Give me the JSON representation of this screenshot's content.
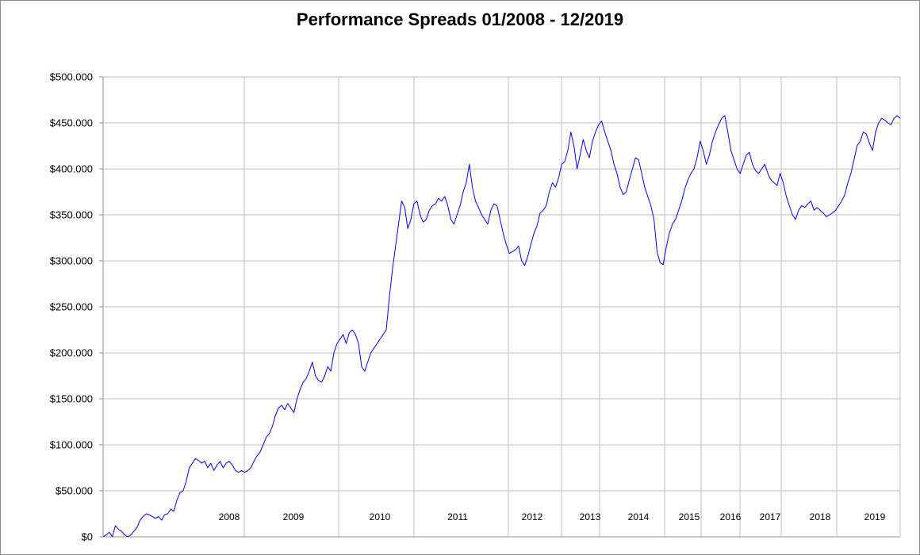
{
  "chart_data": {
    "type": "line",
    "title": "Performance Spreads 01/2008 - 12/2019",
    "xlabel": "",
    "ylabel": "",
    "ylim": [
      0,
      500000
    ],
    "yticks": [
      {
        "value": 0,
        "label": "$0"
      },
      {
        "value": 50000,
        "label": "$50.000"
      },
      {
        "value": 100000,
        "label": "$100.000"
      },
      {
        "value": 150000,
        "label": "$150.000"
      },
      {
        "value": 200000,
        "label": "$200.000"
      },
      {
        "value": 250000,
        "label": "$250.000"
      },
      {
        "value": 300000,
        "label": "$300.000"
      },
      {
        "value": 350000,
        "label": "$350.000"
      },
      {
        "value": 400000,
        "label": "$400.000"
      },
      {
        "value": 450000,
        "label": "$450.000"
      },
      {
        "value": 500000,
        "label": "$500.000"
      }
    ],
    "year_labels": [
      "2008",
      "2009",
      "2010",
      "2011",
      "2012",
      "2013",
      "2014",
      "2015",
      "2016",
      "2017",
      "2018",
      "2019"
    ],
    "grid": true,
    "legend": "none",
    "colors": {
      "line": "#0000ff",
      "grid": "#bfbfbf",
      "axis": "#8c8c8c"
    },
    "series": [
      {
        "color": "#0000ff",
        "values": [
          0,
          2000,
          5000,
          0,
          12000,
          8000,
          6000,
          2000,
          0,
          2000,
          6000,
          10000,
          18000,
          22000,
          25000,
          24000,
          22000,
          20000,
          22000,
          18000,
          24000,
          25000,
          30000,
          28000,
          40000,
          48000,
          50000,
          60000,
          75000,
          80000,
          85000,
          83000,
          80000,
          82000,
          75000,
          80000,
          72000,
          78000,
          82000,
          75000,
          80000,
          82000,
          78000,
          72000,
          70000,
          72000,
          70000,
          72000,
          75000,
          82000,
          88000,
          92000,
          100000,
          108000,
          112000,
          120000,
          132000,
          140000,
          143000,
          138000,
          145000,
          140000,
          135000,
          150000,
          160000,
          168000,
          172000,
          180000,
          190000,
          175000,
          170000,
          168000,
          175000,
          185000,
          180000,
          200000,
          210000,
          215000,
          220000,
          210000,
          222000,
          225000,
          220000,
          210000,
          185000,
          180000,
          190000,
          200000,
          205000,
          210000,
          215000,
          220000,
          225000,
          260000,
          290000,
          315000,
          340000,
          365000,
          358000,
          335000,
          345000,
          362000,
          365000,
          350000,
          342000,
          345000,
          355000,
          360000,
          362000,
          368000,
          365000,
          370000,
          360000,
          345000,
          340000,
          350000,
          360000,
          375000,
          385000,
          405000,
          380000,
          365000,
          358000,
          350000,
          345000,
          340000,
          355000,
          362000,
          360000,
          345000,
          330000,
          318000,
          308000,
          310000,
          312000,
          316000,
          300000,
          295000,
          305000,
          318000,
          330000,
          338000,
          352000,
          355000,
          360000,
          375000,
          385000,
          380000,
          390000,
          405000,
          408000,
          420000,
          440000,
          425000,
          400000,
          415000,
          432000,
          420000,
          412000,
          430000,
          440000,
          448000,
          452000,
          440000,
          430000,
          420000,
          405000,
          395000,
          380000,
          372000,
          375000,
          388000,
          400000,
          412000,
          410000,
          395000,
          380000,
          370000,
          360000,
          345000,
          310000,
          298000,
          296000,
          315000,
          330000,
          340000,
          345000,
          355000,
          365000,
          378000,
          388000,
          395000,
          400000,
          412000,
          430000,
          420000,
          405000,
          415000,
          430000,
          440000,
          448000,
          455000,
          458000,
          440000,
          420000,
          410000,
          400000,
          395000,
          405000,
          415000,
          418000,
          405000,
          398000,
          395000,
          400000,
          405000,
          395000,
          388000,
          385000,
          382000,
          395000,
          385000,
          370000,
          360000,
          350000,
          345000,
          355000,
          360000,
          358000,
          362000,
          365000,
          355000,
          358000,
          355000,
          352000,
          348000,
          350000,
          352000,
          355000,
          360000,
          365000,
          372000,
          385000,
          395000,
          410000,
          425000,
          430000,
          440000,
          438000,
          428000,
          420000,
          440000,
          450000,
          455000,
          453000,
          450000,
          448000,
          455000,
          458000,
          455000
        ]
      }
    ]
  }
}
